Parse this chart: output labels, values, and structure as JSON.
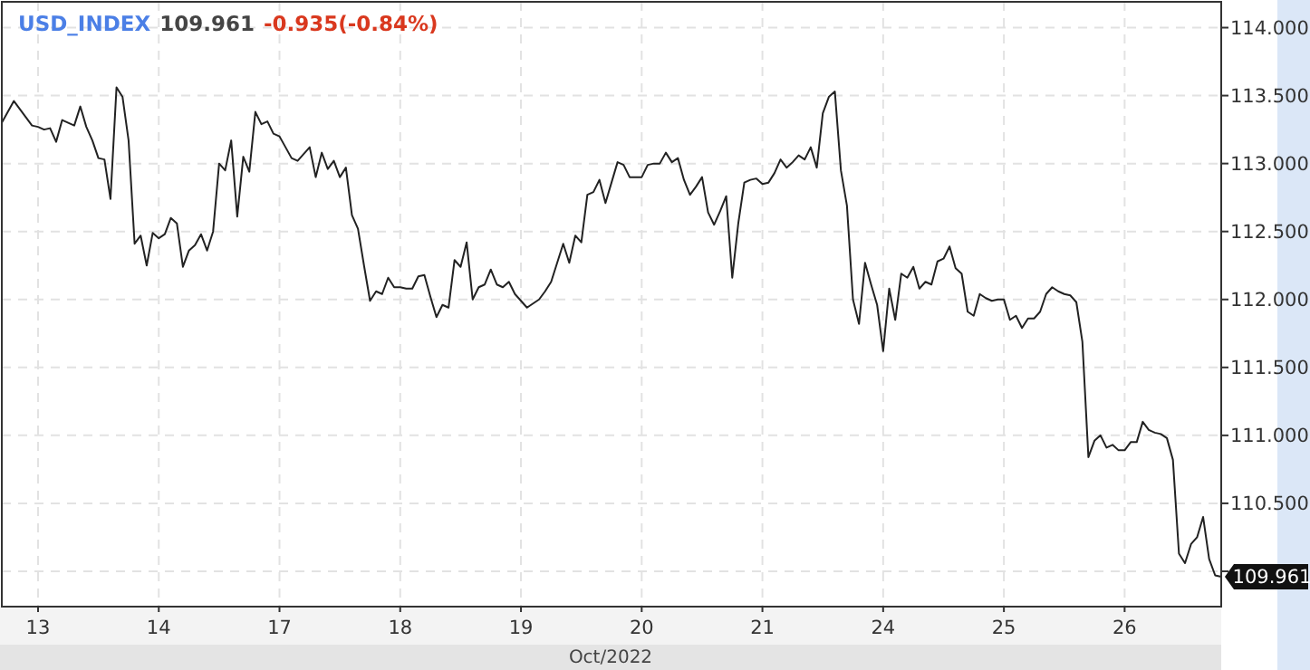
{
  "chart_data": {
    "type": "line",
    "title": "USD_INDEX",
    "xlabel": "Oct/2022",
    "annotations": [
      "109.961",
      "-0.935(-0.84%)",
      "109.961"
    ],
    "categories": [
      null,
      null,
      null,
      null,
      null,
      null,
      "13",
      null,
      null,
      null,
      null,
      null,
      null,
      null,
      null,
      null,
      null,
      null,
      null,
      null,
      null,
      null,
      null,
      null,
      null,
      null,
      "14",
      null,
      null,
      null,
      null,
      null,
      null,
      null,
      null,
      null,
      null,
      null,
      null,
      null,
      null,
      null,
      null,
      null,
      null,
      null,
      "17",
      null,
      null,
      null,
      null,
      null,
      null,
      null,
      null,
      null,
      null,
      null,
      null,
      null,
      null,
      null,
      null,
      null,
      null,
      null,
      "18",
      null,
      null,
      null,
      null,
      null,
      null,
      null,
      null,
      null,
      null,
      null,
      null,
      null,
      null,
      null,
      null,
      null,
      null,
      null,
      "19",
      null,
      null,
      null,
      null,
      null,
      null,
      null,
      null,
      null,
      null,
      null,
      null,
      null,
      null,
      null,
      null,
      null,
      null,
      null,
      "20",
      null,
      null,
      null,
      null,
      null,
      null,
      null,
      null,
      null,
      null,
      null,
      null,
      null,
      null,
      null,
      null,
      null,
      null,
      null,
      "21",
      null,
      null,
      null,
      null,
      null,
      null,
      null,
      null,
      null,
      null,
      null,
      null,
      null,
      null,
      null,
      null,
      null,
      null,
      null,
      "24",
      null,
      null,
      null,
      null,
      null,
      null,
      null,
      null,
      null,
      null,
      null,
      null,
      null,
      null,
      null,
      null,
      null,
      null,
      null,
      "25",
      null,
      null,
      null,
      null,
      null,
      null,
      null,
      null,
      null,
      null,
      null,
      null,
      null,
      null,
      null,
      null,
      null,
      null,
      null,
      "26",
      null,
      null,
      null,
      null,
      null,
      null,
      null,
      null,
      null,
      null,
      null,
      null,
      null,
      null,
      null,
      null
    ],
    "ylim": [
      109.74,
      114.19
    ],
    "yticks": [
      {
        "value": 110,
        "label": null
      },
      {
        "value": 110.5,
        "label": "110.500"
      },
      {
        "value": 111,
        "label": "111.000"
      },
      {
        "value": 111.5,
        "label": "111.500"
      },
      {
        "value": 112,
        "label": "112.000"
      },
      {
        "value": 112.5,
        "label": "112.500"
      },
      {
        "value": 113,
        "label": "113.000"
      },
      {
        "value": 113.5,
        "label": "113.500"
      },
      {
        "value": 114,
        "label": "114.000"
      }
    ],
    "grid": true,
    "line_style": "solid",
    "marker": "none",
    "series": [
      {
        "color": "#222222",
        "values": [
          113.3,
          113.38,
          113.46,
          113.4,
          113.34,
          113.28,
          113.27,
          113.25,
          113.26,
          113.16,
          113.32,
          113.3,
          113.28,
          113.42,
          113.27,
          113.17,
          113.04,
          113.03,
          112.74,
          113.56,
          113.49,
          113.17,
          112.41,
          112.47,
          112.25,
          112.49,
          112.45,
          112.48,
          112.6,
          112.56,
          112.24,
          112.36,
          112.4,
          112.48,
          112.36,
          112.5,
          113.0,
          112.95,
          113.17,
          112.61,
          113.05,
          112.94,
          113.38,
          113.29,
          113.31,
          113.22,
          113.2,
          113.12,
          113.04,
          113.02,
          113.07,
          113.12,
          112.9,
          113.08,
          112.96,
          113.02,
          112.9,
          112.97,
          112.62,
          112.52,
          112.25,
          111.99,
          112.06,
          112.04,
          112.16,
          112.09,
          112.09,
          112.08,
          112.08,
          112.17,
          112.18,
          112.02,
          111.87,
          111.96,
          111.94,
          112.29,
          112.24,
          112.42,
          112.0,
          112.09,
          112.11,
          112.22,
          112.11,
          112.09,
          112.13,
          112.04,
          111.99,
          111.94,
          111.97,
          112.0,
          112.06,
          112.13,
          112.27,
          112.41,
          112.27,
          112.47,
          112.42,
          112.77,
          112.79,
          112.88,
          112.71,
          112.86,
          113.01,
          112.99,
          112.9,
          112.9,
          112.9,
          112.99,
          113.0,
          113.0,
          113.08,
          113.01,
          113.04,
          112.88,
          112.77,
          112.83,
          112.9,
          112.64,
          112.55,
          112.65,
          112.76,
          112.16,
          112.56,
          112.86,
          112.88,
          112.89,
          112.85,
          112.86,
          112.93,
          113.03,
          112.97,
          113.01,
          113.06,
          113.03,
          113.12,
          112.97,
          113.37,
          113.49,
          113.53,
          112.95,
          112.69,
          112.0,
          111.82,
          112.27,
          112.11,
          111.96,
          111.62,
          112.08,
          111.85,
          112.19,
          112.16,
          112.24,
          112.08,
          112.13,
          112.11,
          112.28,
          112.3,
          112.39,
          112.23,
          112.19,
          111.91,
          111.88,
          112.04,
          112.01,
          111.99,
          112.0,
          112.0,
          111.85,
          111.88,
          111.79,
          111.86,
          111.86,
          111.91,
          112.04,
          112.09,
          112.06,
          112.04,
          112.03,
          111.98,
          111.69,
          110.84,
          110.96,
          111.0,
          110.91,
          110.93,
          110.89,
          110.89,
          110.95,
          110.95,
          111.1,
          111.04,
          111.02,
          111.01,
          110.98,
          110.82,
          110.13,
          110.06,
          110.2,
          110.25,
          110.4,
          110.09,
          109.97,
          109.96
        ]
      }
    ]
  }
}
